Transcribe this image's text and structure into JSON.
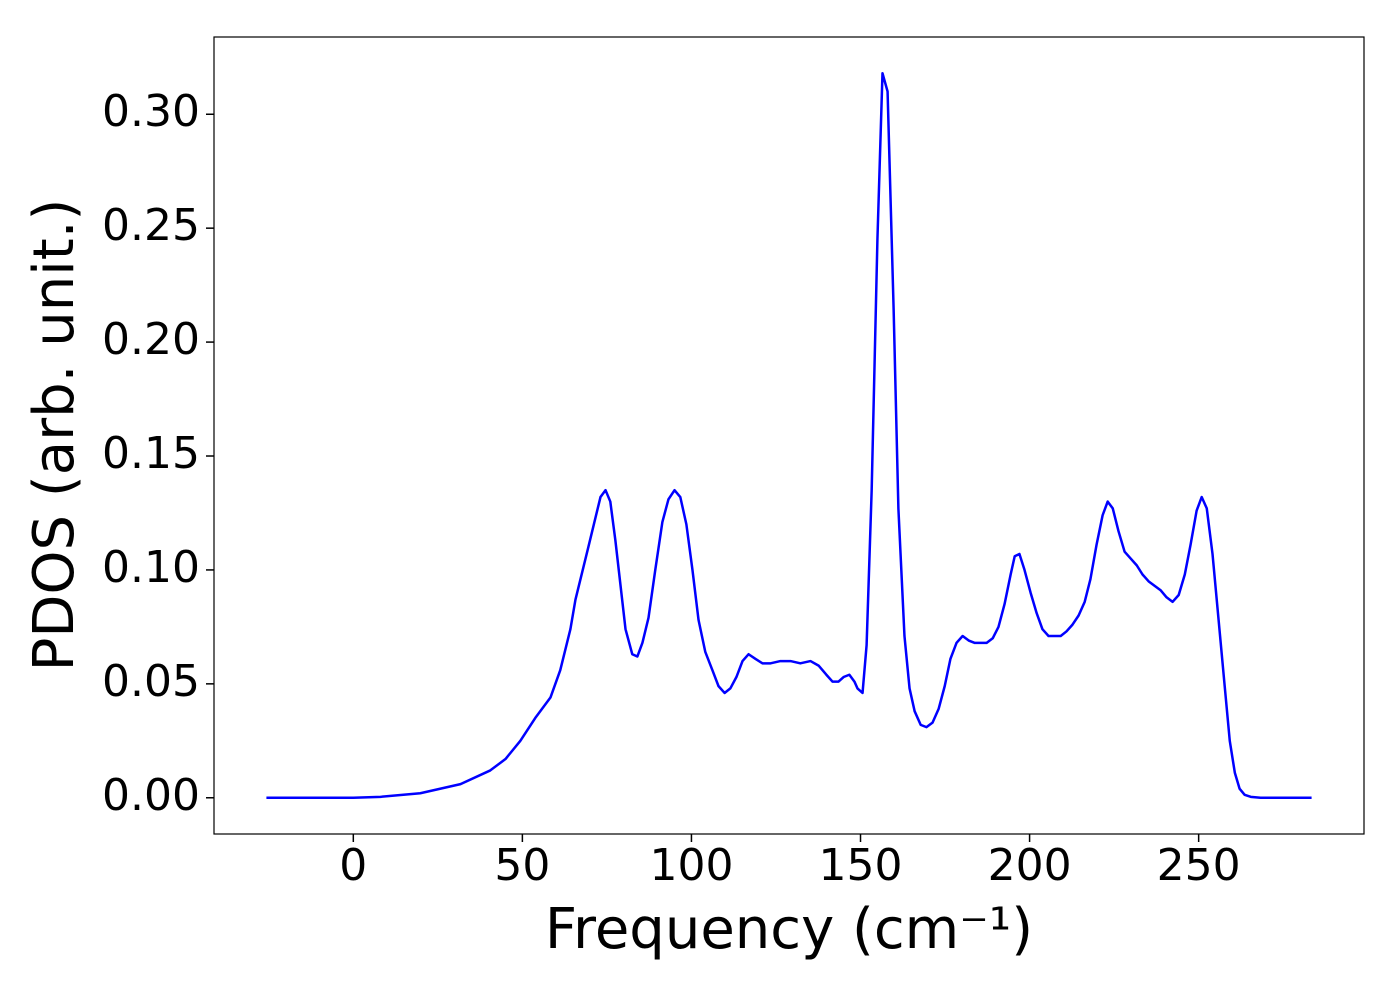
{
  "chart_data": {
    "type": "line",
    "x_label": "Frequency (cm⁻¹)",
    "y_label": "PDOS (arb. unit.)",
    "series": [
      {
        "color": "#0000ff",
        "x": [
          -25.7,
          0,
          8.0,
          19.8,
          31.7,
          40.5,
          45.0,
          49.4,
          53.8,
          58.3,
          61.2,
          64.2,
          65.7,
          69.5,
          73.1,
          74.6,
          76.0,
          77.5,
          80.5,
          82.5,
          84.0,
          85.5,
          87.3,
          89.3,
          91.4,
          93.2,
          95.0,
          96.7,
          98.5,
          100.3,
          102.1,
          104.1,
          106.2,
          108.0,
          109.8,
          111.5,
          113.3,
          115.1,
          116.9,
          118.9,
          121.0,
          123.4,
          126.3,
          129.3,
          132.2,
          135.2,
          137.6,
          139.9,
          141.7,
          143.5,
          145.0,
          146.7,
          148.2,
          149.1,
          150.6,
          151.8,
          153.3,
          155.0,
          156.5,
          158.0,
          159.8,
          161.2,
          163.0,
          164.5,
          166.0,
          167.8,
          169.5,
          171.3,
          173.1,
          174.9,
          176.6,
          178.4,
          180.2,
          182.0,
          183.7,
          185.5,
          187.3,
          189.1,
          190.8,
          192.6,
          194.4,
          195.6,
          197.0,
          198.5,
          200.3,
          202.1,
          203.8,
          205.6,
          207.4,
          209.2,
          210.9,
          212.7,
          214.5,
          216.3,
          218.0,
          219.8,
          221.6,
          223.1,
          224.6,
          226.3,
          228.1,
          229.9,
          231.7,
          233.4,
          235.2,
          237.0,
          238.8,
          240.5,
          242.3,
          244.1,
          245.9,
          247.6,
          249.4,
          250.9,
          252.4,
          254.1,
          255.9,
          257.7,
          259.2,
          260.7,
          262.1,
          263.6,
          265.4,
          268.3,
          283.4
        ],
        "values": [
          0,
          0,
          0.0004,
          0.002,
          0.006,
          0.012,
          0.017,
          0.025,
          0.035,
          0.044,
          0.056,
          0.074,
          0.087,
          0.11,
          0.132,
          0.135,
          0.13,
          0.113,
          0.074,
          0.063,
          0.062,
          0.068,
          0.079,
          0.1,
          0.121,
          0.131,
          0.135,
          0.132,
          0.12,
          0.1,
          0.078,
          0.064,
          0.056,
          0.049,
          0.046,
          0.048,
          0.053,
          0.06,
          0.063,
          0.061,
          0.059,
          0.059,
          0.06,
          0.06,
          0.059,
          0.06,
          0.058,
          0.054,
          0.051,
          0.051,
          0.053,
          0.054,
          0.051,
          0.048,
          0.046,
          0.067,
          0.135,
          0.245,
          0.318,
          0.31,
          0.214,
          0.127,
          0.071,
          0.048,
          0.038,
          0.032,
          0.031,
          0.033,
          0.039,
          0.049,
          0.061,
          0.068,
          0.071,
          0.069,
          0.068,
          0.068,
          0.068,
          0.07,
          0.075,
          0.085,
          0.098,
          0.106,
          0.107,
          0.1,
          0.09,
          0.081,
          0.074,
          0.071,
          0.071,
          0.071,
          0.073,
          0.076,
          0.08,
          0.086,
          0.096,
          0.111,
          0.124,
          0.13,
          0.127,
          0.117,
          0.108,
          0.105,
          0.102,
          0.098,
          0.095,
          0.093,
          0.091,
          0.088,
          0.086,
          0.089,
          0.098,
          0.111,
          0.126,
          0.132,
          0.127,
          0.107,
          0.078,
          0.049,
          0.025,
          0.011,
          0.004,
          0.0013,
          0.0004,
          0,
          0
        ]
      }
    ],
    "xlim": [
      -41.2,
      298.9
    ],
    "ylim": [
      -0.0159,
      0.3339
    ],
    "xticks": [
      0,
      50,
      100,
      150,
      200,
      250
    ],
    "yticks": [
      {
        "value": 0,
        "label": "0.00"
      },
      {
        "value": 0.05,
        "label": "0.05"
      },
      {
        "value": 0.1,
        "label": "0.10"
      },
      {
        "value": 0.15,
        "label": "0.15"
      },
      {
        "value": 0.2,
        "label": "0.20"
      },
      {
        "value": 0.25,
        "label": "0.25"
      },
      {
        "value": 0.3,
        "label": "0.30"
      }
    ],
    "grid": false
  }
}
